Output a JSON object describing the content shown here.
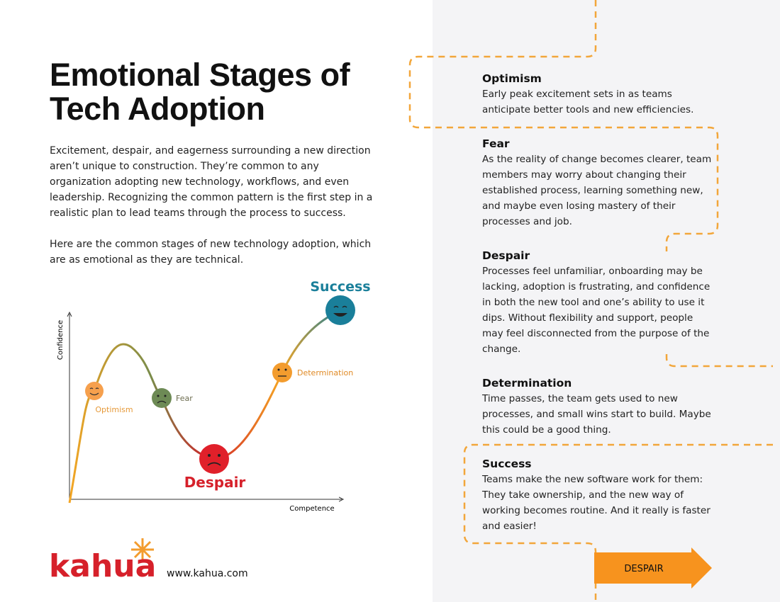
{
  "title_lines": [
    "Emotional Stages of",
    "Tech Adoption"
  ],
  "intro": [
    "Excitement, despair, and eagerness surrounding a new direction aren’t unique to construction. They’re common to any organization adopting new technology, workflows, and even leadership. Recognizing the common pattern is the first step in a realistic plan to lead teams through the process to success.",
    "Here are the common stages of new technology adoption, which are as emotional as they are technical."
  ],
  "diagram": {
    "y_axis": "Confidence",
    "x_axis": "Competence",
    "labels": {
      "optimism": "Optimism",
      "fear": "Fear",
      "despair": "Despair",
      "determination": "Determination",
      "success": "Success"
    }
  },
  "brand": {
    "logo": "kahua",
    "url": "www.kahua.com"
  },
  "stages": [
    {
      "heading": "Optimism",
      "text": "Early peak excitement sets in as teams anticipate better tools and new efficiencies."
    },
    {
      "heading": "Fear",
      "text": "As the reality of change becomes clearer, team members may worry about changing their established process, learning something new, and maybe even losing mastery of their processes and job."
    },
    {
      "heading": "Despair",
      "text": "Processes feel unfamiliar, onboarding may be lacking, adoption is frustrating, and confidence in both the new tool and one’s ability to use it dips. Without flexibility and support, people may feel disconnected from the purpose of the change."
    },
    {
      "heading": "Determination",
      "text": "Time passes, the team gets used to new processes, and small wins start to build. Maybe this could be a good thing."
    },
    {
      "heading": "Success",
      "text": "Teams make the new software work for them: They take ownership, and the new way of working becomes routine. And it really is faster and easier!"
    }
  ],
  "arrow_label": "DESPAIR"
}
